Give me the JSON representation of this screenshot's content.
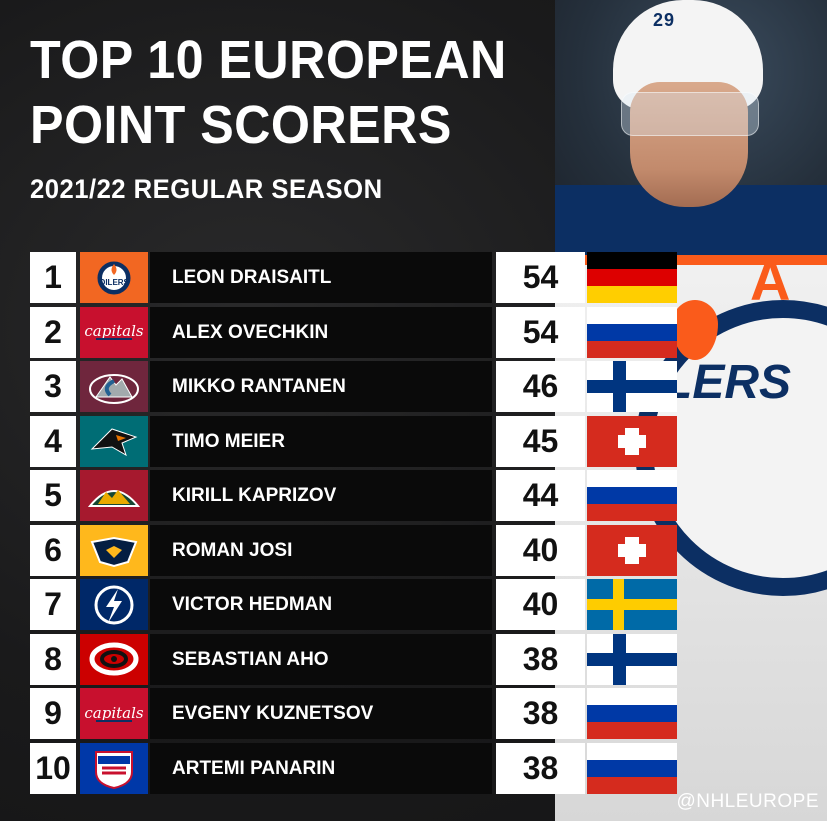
{
  "title_line1": "TOP 10 EUROPEAN",
  "title_line2": "POINT SCORERS",
  "subtitle": "2021/22 REGULAR SEASON",
  "player_photo": {
    "jersey_number": "29",
    "captain_letter": "A",
    "crest_text": "LERS"
  },
  "rows": [
    {
      "rank": "1",
      "team_logo": "oilers-logo",
      "player": "LEON DRAISAITL",
      "points": "54",
      "flag": "germany-flag"
    },
    {
      "rank": "2",
      "team_logo": "capitals-logo",
      "player": "ALEX OVECHKIN",
      "points": "54",
      "flag": "russia-flag"
    },
    {
      "rank": "3",
      "team_logo": "avalanche-logo",
      "player": "MIKKO RANTANEN",
      "points": "46",
      "flag": "finland-flag"
    },
    {
      "rank": "4",
      "team_logo": "sharks-logo",
      "player": "TIMO MEIER",
      "points": "45",
      "flag": "switzerland-flag"
    },
    {
      "rank": "5",
      "team_logo": "wild-logo",
      "player": "KIRILL KAPRIZOV",
      "points": "44",
      "flag": "russia-flag"
    },
    {
      "rank": "6",
      "team_logo": "predators-logo",
      "player": "ROMAN JOSI",
      "points": "40",
      "flag": "switzerland-flag"
    },
    {
      "rank": "7",
      "team_logo": "lightning-logo",
      "player": "VICTOR HEDMAN",
      "points": "40",
      "flag": "sweden-flag"
    },
    {
      "rank": "8",
      "team_logo": "hurricanes-logo",
      "player": "SEBASTIAN AHO",
      "points": "38",
      "flag": "finland-flag"
    },
    {
      "rank": "9",
      "team_logo": "capitals-logo",
      "player": "EVGENY KUZNETSOV",
      "points": "38",
      "flag": "russia-flag"
    },
    {
      "rank": "10",
      "team_logo": "rangers-logo",
      "player": "ARTEMI PANARIN",
      "points": "38",
      "flag": "russia-flag"
    }
  ],
  "handle": "@NHLEUROPE",
  "colors": {
    "oilers": "#f26722",
    "capitals": "#c8102e",
    "avalanche": "#6f263d",
    "sharks": "#006d75",
    "wild": "#a6192e",
    "predators": "#ffb81c",
    "lightning": "#002868",
    "hurricanes": "#cc0000",
    "rangers": "#0038a8"
  }
}
